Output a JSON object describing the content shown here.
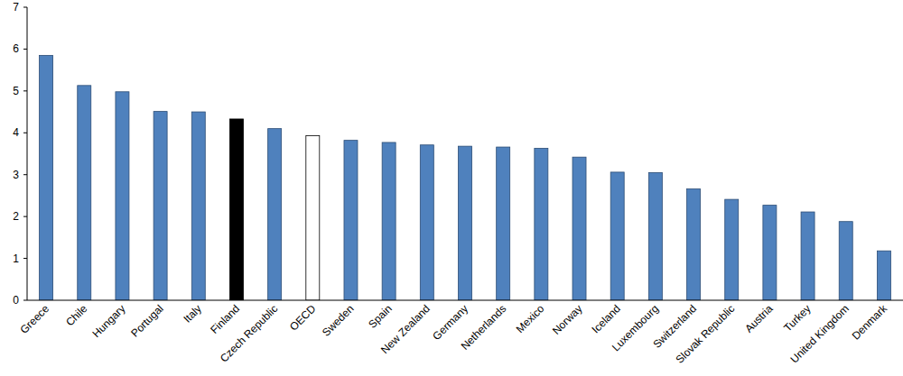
{
  "chart_data": {
    "type": "bar",
    "categories": [
      "Greece",
      "Chile",
      "Hungary",
      "Portugal",
      "Italy",
      "Finland",
      "Czech Republic",
      "OECD",
      "Sweden",
      "Spain",
      "New Zealand",
      "Germany",
      "Netherlands",
      "Mexico",
      "Norway",
      "Iceland",
      "Luxembourg",
      "Switzerland",
      "Slovak Republic",
      "Austria",
      "Turkey",
      "United Kingdom",
      "Denmark"
    ],
    "values": [
      5.85,
      5.13,
      4.98,
      4.51,
      4.5,
      4.33,
      4.1,
      3.93,
      3.82,
      3.77,
      3.71,
      3.68,
      3.66,
      3.63,
      3.42,
      3.06,
      3.05,
      2.66,
      2.41,
      2.27,
      2.11,
      1.88,
      1.18
    ],
    "colors": [
      "#4f81bd",
      "#4f81bd",
      "#4f81bd",
      "#4f81bd",
      "#4f81bd",
      "#000000",
      "#4f81bd",
      "#ffffff",
      "#4f81bd",
      "#4f81bd",
      "#4f81bd",
      "#4f81bd",
      "#4f81bd",
      "#4f81bd",
      "#4f81bd",
      "#4f81bd",
      "#4f81bd",
      "#4f81bd",
      "#4f81bd",
      "#4f81bd",
      "#4f81bd",
      "#4f81bd",
      "#4f81bd"
    ],
    "ylim": [
      0,
      7
    ],
    "yticks": [
      0,
      1,
      2,
      3,
      4,
      5,
      6,
      7
    ],
    "grid": false
  }
}
